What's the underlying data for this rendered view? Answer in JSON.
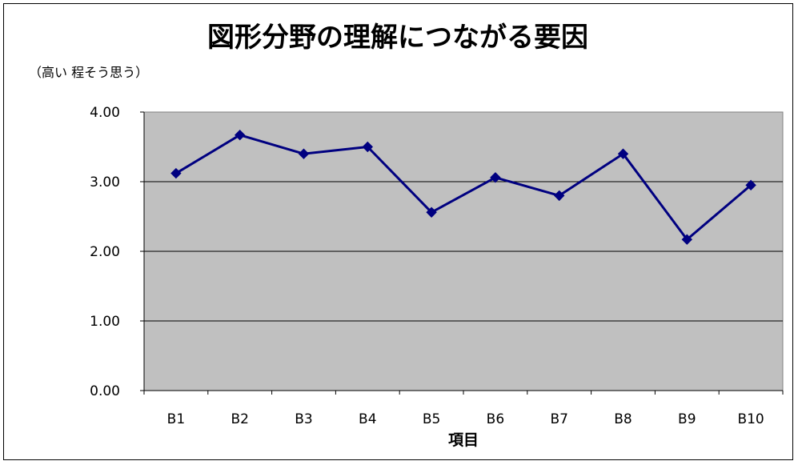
{
  "chart_data": {
    "type": "line",
    "title": "図形分野の理解につながる要因",
    "ylabel": "（高い 程そう思う）",
    "xlabel": "項目",
    "categories": [
      "B1",
      "B2",
      "B3",
      "B4",
      "B5",
      "B6",
      "B7",
      "B8",
      "B9",
      "B10"
    ],
    "series": [
      {
        "values": [
          3.12,
          3.67,
          3.4,
          3.5,
          2.56,
          3.06,
          2.8,
          3.4,
          2.17,
          2.95
        ]
      }
    ],
    "ylim": [
      0,
      4
    ],
    "yticks": [
      "0.00",
      "1.00",
      "2.00",
      "3.00",
      "4.00"
    ],
    "grid": true,
    "legend": "none",
    "colors": {
      "line": "#000080",
      "plot_background": "#c0c0c0",
      "gridline": "#000000"
    }
  }
}
